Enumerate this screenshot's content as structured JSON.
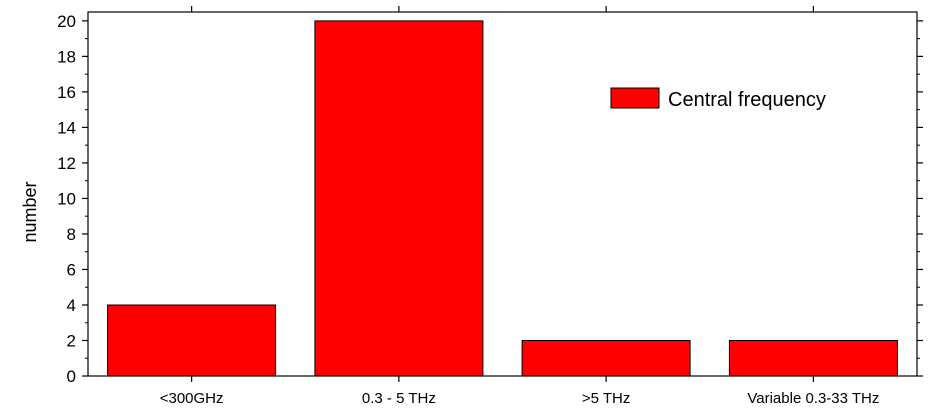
{
  "chart_data": {
    "type": "bar",
    "categories": [
      "<300GHz",
      "0.3 - 5 THz",
      ">5 THz",
      "Variable 0.3-33 THz"
    ],
    "series": [
      {
        "name": "Central frequency",
        "values": [
          4,
          20,
          2,
          2
        ]
      }
    ],
    "title": "",
    "xlabel": "",
    "ylabel": "number",
    "ylim": [
      0,
      20.5
    ],
    "yticks": [
      0,
      2,
      4,
      6,
      8,
      10,
      12,
      14,
      16,
      18,
      20
    ],
    "grid": false,
    "legend": {
      "position": "top-right"
    },
    "colors": {
      "bar_fill": "#ff0000",
      "bar_stroke": "#000000",
      "axis": "#000000"
    }
  }
}
